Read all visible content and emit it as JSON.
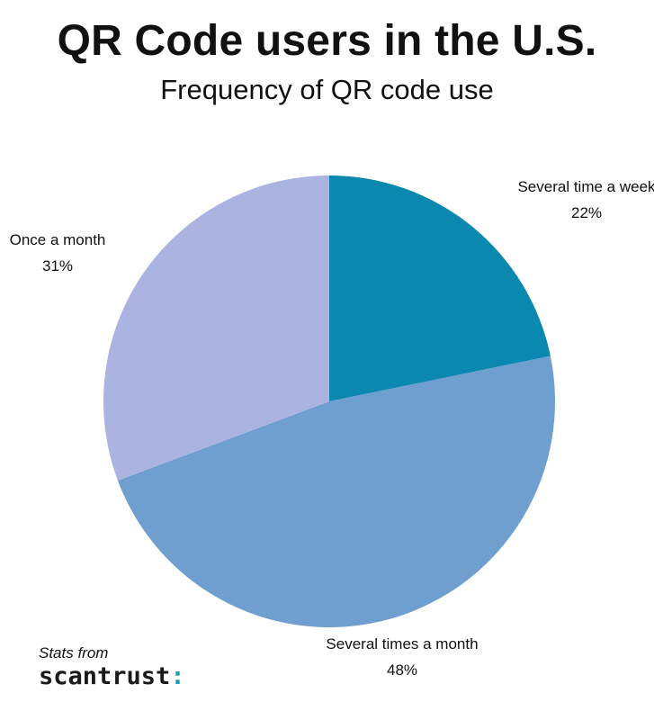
{
  "title": "QR Code users in the U.S.",
  "subtitle": "Frequency of QR code use",
  "chart_data": {
    "type": "pie",
    "slices": [
      {
        "label": "Several time a week",
        "value": 22,
        "value_label": "22%",
        "color": "#0b88b0"
      },
      {
        "label": "Several times a month",
        "value": 48,
        "value_label": "48%",
        "color": "#6e9fcf"
      },
      {
        "label": "Once a month",
        "value": 31,
        "value_label": "31%",
        "color": "#abb4e0"
      }
    ],
    "start_angle": "12 o'clock",
    "direction": "clockwise",
    "labels": "outside"
  },
  "credit": {
    "prefix": "Stats from",
    "brand": "scantrust",
    "brand_mark": ":"
  }
}
